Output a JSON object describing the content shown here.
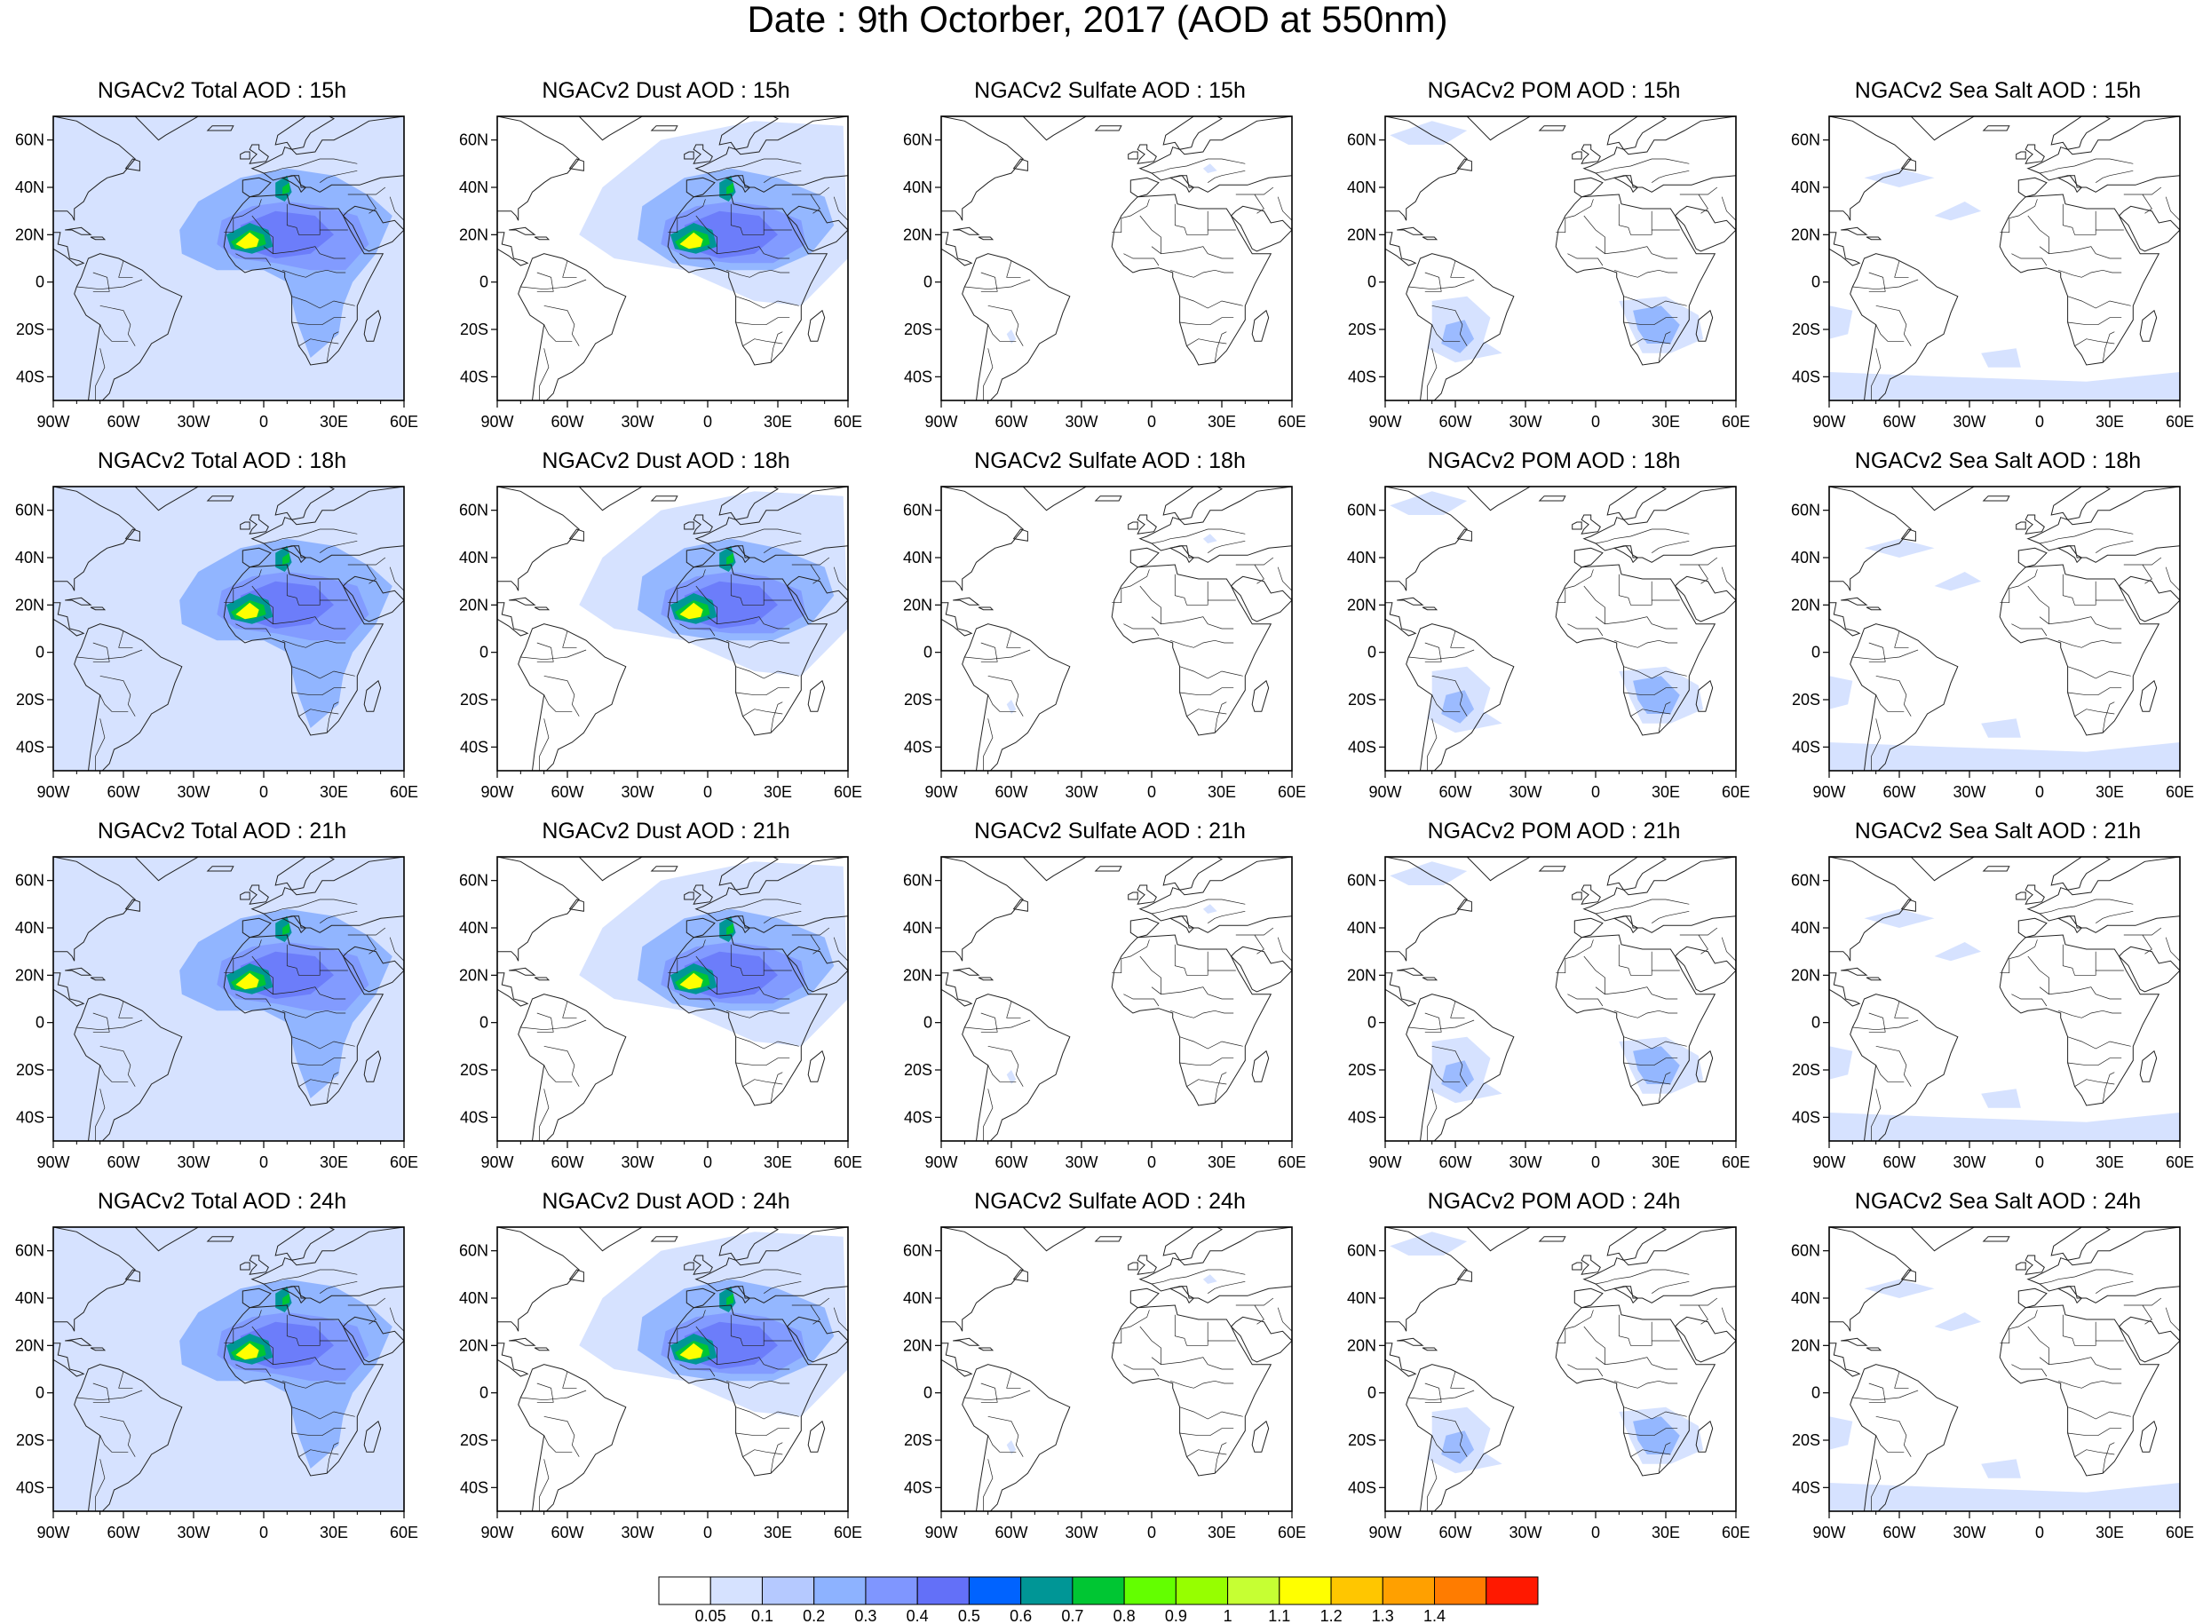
{
  "title": "Date : 9th Octorber, 2017 (AOD at 550nm)",
  "rows": [
    "15h",
    "18h",
    "21h",
    "24h"
  ],
  "columns": [
    "total",
    "dust",
    "sulfate",
    "pom",
    "seasalt"
  ],
  "panels": [
    [
      "NGACv2 Total AOD : 15h",
      "NGACv2 Dust AOD : 15h",
      "NGACv2 Sulfate AOD : 15h",
      "NGACv2 POM AOD : 15h",
      "NGACv2 Sea Salt AOD : 15h"
    ],
    [
      "NGACv2 Total AOD : 18h",
      "NGACv2 Dust AOD : 18h",
      "NGACv2 Sulfate AOD : 18h",
      "NGACv2 POM AOD : 18h",
      "NGACv2 Sea Salt AOD : 18h"
    ],
    [
      "NGACv2 Total AOD : 21h",
      "NGACv2 Dust AOD : 21h",
      "NGACv2 Sulfate AOD : 21h",
      "NGACv2 POM AOD : 21h",
      "NGACv2 Sea Salt AOD : 21h"
    ],
    [
      "NGACv2 Total AOD : 24h",
      "NGACv2 Dust AOD : 24h",
      "NGACv2 Sulfate AOD : 24h",
      "NGACv2 POM AOD : 24h",
      "NGACv2 Sea Salt  AOD : 24h"
    ]
  ],
  "map": {
    "lon_range": [
      -90,
      60
    ],
    "lat_range": [
      -50,
      70
    ],
    "lon_ticks": [
      "90W",
      "60W",
      "30W",
      "0",
      "30E",
      "60E"
    ],
    "lat_ticks": [
      "60N",
      "40N",
      "20N",
      "0",
      "20S",
      "40S"
    ],
    "lon_tick_values": [
      -90,
      -60,
      -30,
      0,
      30,
      60
    ],
    "lat_tick_values": [
      60,
      40,
      20,
      0,
      -20,
      -40
    ]
  },
  "colorbar": {
    "levels": [
      "0.05",
      "0.1",
      "0.2",
      "0.3",
      "0.4",
      "0.5",
      "0.6",
      "0.7",
      "0.8",
      "0.9",
      "1",
      "1.1",
      "1.2",
      "1.3",
      "1.4"
    ],
    "colors": [
      "#ffffff",
      "#d6e2ff",
      "#b5c9ff",
      "#8db2ff",
      "#7f96ff",
      "#6370f8",
      "#0063ff",
      "#009696",
      "#00c633",
      "#63ff00",
      "#96ff00",
      "#c6ff33",
      "#ffff00",
      "#ffc600",
      "#ffa000",
      "#ff7c00",
      "#ff1900"
    ]
  },
  "colors": {
    "coast": "#222222",
    "frame": "#000000",
    "light": "#d6e2ff",
    "mid": "#b5c9ff",
    "blue": "#8db2ff",
    "deep": "#7f96ff",
    "violet": "#6370f8",
    "teal": "#009696",
    "green": "#00c633",
    "yellow": "#ffff00"
  }
}
